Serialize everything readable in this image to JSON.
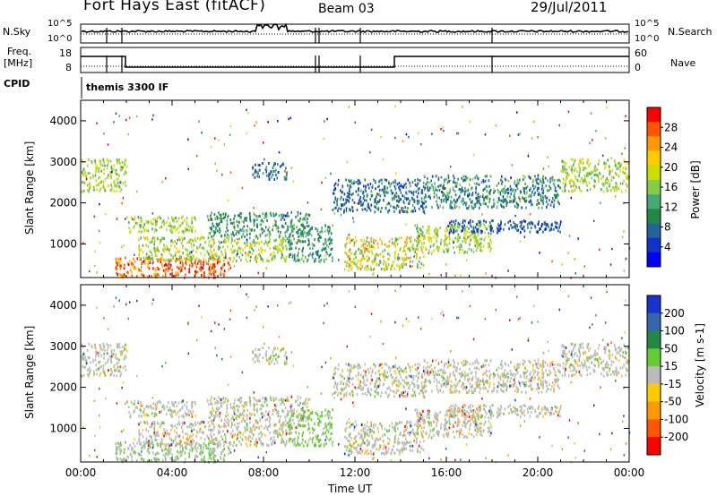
{
  "header": {
    "station": "Fort Hays East (fitACF)",
    "beam": "Beam 03",
    "date": "29/Jul/2011"
  },
  "left_labels": {
    "nsky": "N.Sky",
    "freq_line1": "Freq.",
    "freq_line2": "[MHz]",
    "cpid": "CPID"
  },
  "right_labels": {
    "nsearch": "N.Search",
    "nave": "Nave"
  },
  "cpid_value": "themis 3300 IF",
  "noise_axis": {
    "left_ticks": [
      "10^5",
      "10^0"
    ],
    "right_ticks": [
      "10^5",
      "10^0"
    ]
  },
  "freq_axis": {
    "left_ticks": [
      "18",
      "8"
    ],
    "right_ticks": [
      "60",
      "0"
    ]
  },
  "chart_data": [
    {
      "type": "heatmap",
      "title": "",
      "xlabel": "",
      "ylabel": "Slant Range [km]",
      "colorbar_label": "Power [dB]",
      "colorbar_ticks": [
        "28",
        "24",
        "20",
        "16",
        "12",
        "8",
        "4"
      ],
      "colorbar_colors": [
        "#ff0000",
        "#ff5500",
        "#ff9900",
        "#ffcc00",
        "#ccdd00",
        "#88cc44",
        "#44aa77",
        "#228844",
        "#226699",
        "#1133cc",
        "#0000ff"
      ],
      "ylim": [
        180,
        4500
      ],
      "y_ticks": [
        "4000",
        "3000",
        "2000",
        "1000"
      ],
      "xlim": [
        0,
        24
      ]
    },
    {
      "type": "heatmap",
      "title": "",
      "xlabel": "Time UT",
      "ylabel": "Slant Range [km]",
      "colorbar_label": "Velocity [m s-1]",
      "colorbar_ticks": [
        "200",
        "100",
        "50",
        "15",
        "-15",
        "-50",
        "-100",
        "-200"
      ],
      "colorbar_colors": [
        "#1a33cc",
        "#3366aa",
        "#228844",
        "#66cc33",
        "#bbbbbb",
        "#ffcc00",
        "#ff9900",
        "#ff5500",
        "#ff0000"
      ],
      "ylim": [
        180,
        4500
      ],
      "y_ticks": [
        "4000",
        "3000",
        "2000",
        "1000"
      ],
      "x_ticks": [
        "00:00",
        "04:00",
        "08:00",
        "12:00",
        "16:00",
        "20:00",
        "00:00"
      ],
      "xlim": [
        0,
        24
      ]
    }
  ]
}
